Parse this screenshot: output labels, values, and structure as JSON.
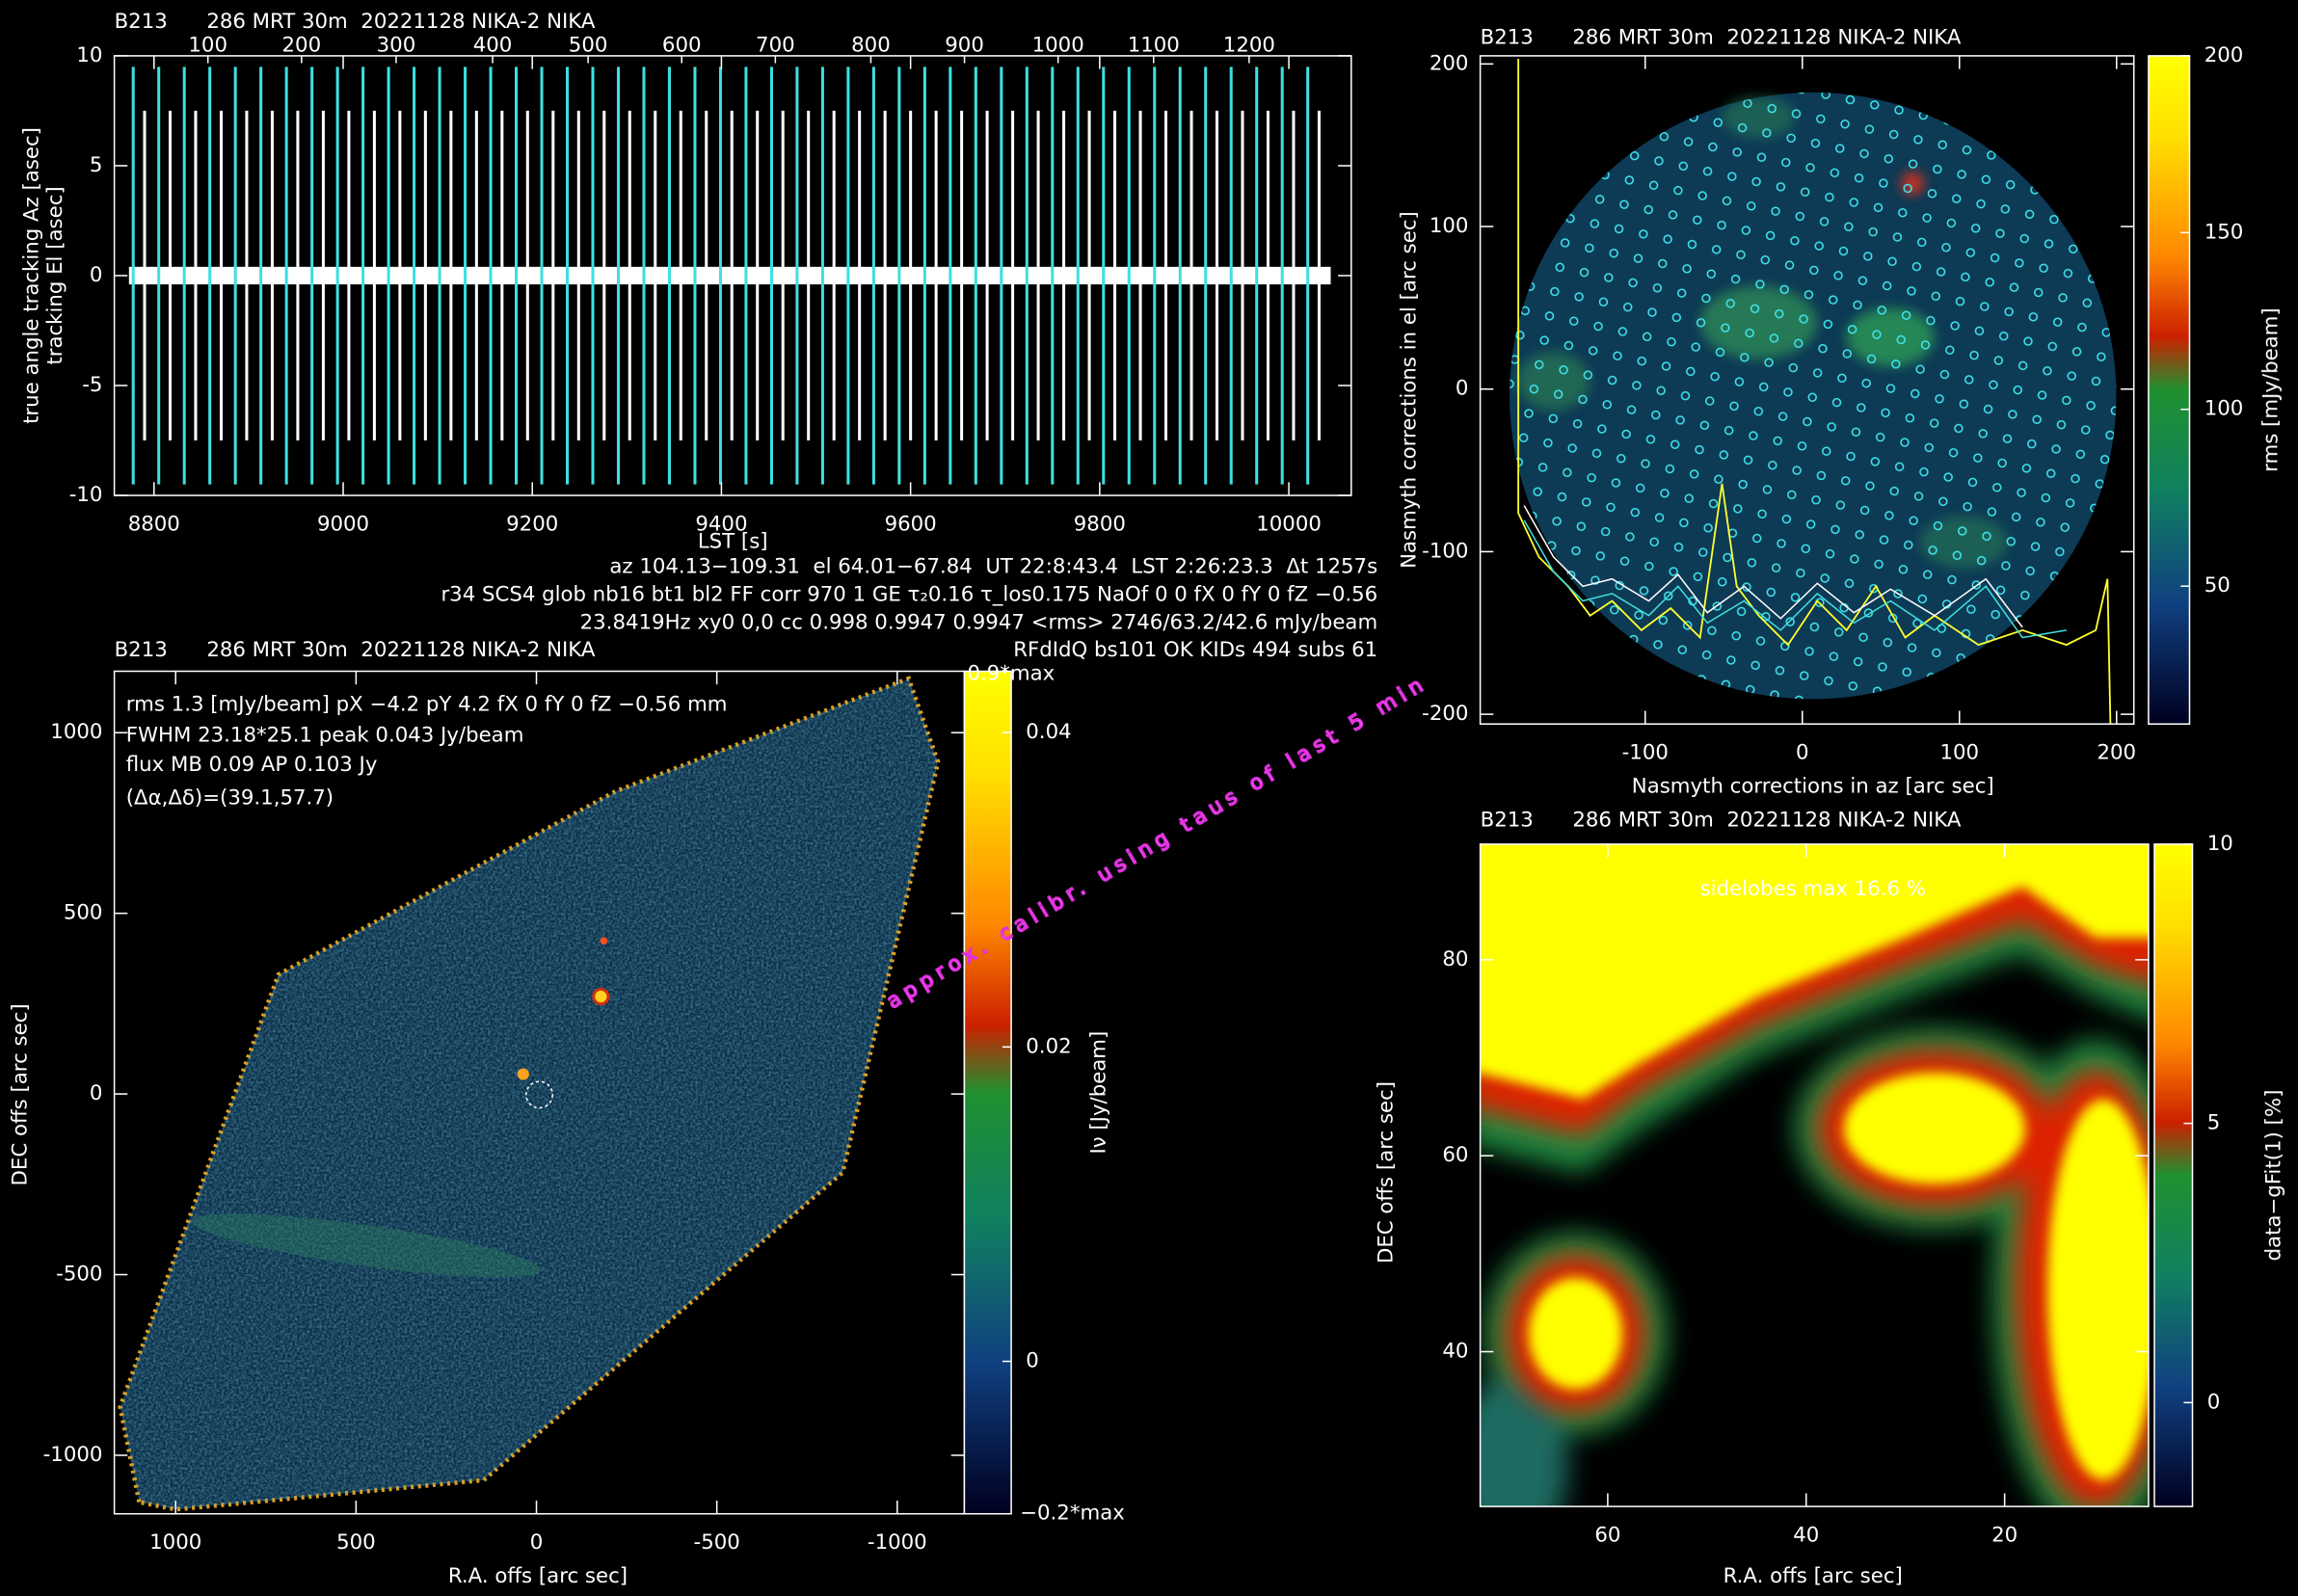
{
  "chart_data": [
    {
      "type": "spike",
      "title": "B213      286 MRT 30m  20221128 NIKA-2 NIKA",
      "xlabel": "LST [s]",
      "ylabel": "tracking El [asec]",
      "ylabel2": "true angle tracking Az [asec]",
      "xlim": [
        8758,
        10066
      ],
      "ylim": [
        -10,
        10
      ],
      "xticks": [
        8800,
        9000,
        9200,
        9400,
        9600,
        9800,
        10000
      ],
      "yticks": [
        -10,
        -5,
        0,
        5,
        10
      ],
      "x2ticks": [
        {
          "value": 8857,
          "label": "100"
        },
        {
          "value": 8956,
          "label": "200"
        },
        {
          "value": 9056,
          "label": "300"
        },
        {
          "value": 9158,
          "label": "400"
        },
        {
          "value": 9259,
          "label": "500"
        },
        {
          "value": 9358,
          "label": "600"
        },
        {
          "value": 9457,
          "label": "700"
        },
        {
          "value": 9558,
          "label": "800"
        },
        {
          "value": 9657,
          "label": "900"
        },
        {
          "value": 9756,
          "label": "1000"
        },
        {
          "value": 9857,
          "label": "1100"
        },
        {
          "value": 9958,
          "label": "1200"
        }
      ],
      "series": [
        {
          "color": "#3ee0e0",
          "x": [
            8778,
            8805,
            8832,
            8859,
            8886,
            8913,
            8940,
            8967,
            8994,
            9021,
            9048,
            9075,
            9102,
            9129,
            9156,
            9183,
            9210,
            9237,
            9264,
            9291,
            9318,
            9345,
            9372,
            9399,
            9426,
            9453,
            9480,
            9507,
            9534,
            9561,
            9588,
            9615,
            9642,
            9669,
            9696,
            9723,
            9750,
            9777,
            9804,
            9831,
            9858,
            9885,
            9912,
            9939,
            9966,
            9993,
            10020
          ],
          "values": [
            9.5,
            9.5,
            9.5,
            9.5,
            9.5,
            9.5,
            9.5,
            9.5,
            9.5,
            9.5,
            9.5,
            9.5,
            9.5,
            9.5,
            9.5,
            9.5,
            9.5,
            9.5,
            9.5,
            9.5,
            9.5,
            9.5,
            9.5,
            9.5,
            9.5,
            9.5,
            9.5,
            9.5,
            9.5,
            9.5,
            9.5,
            9.5,
            9.5,
            9.5,
            9.5,
            9.5,
            9.5,
            9.5,
            9.5,
            9.5,
            9.5,
            9.5,
            9.5,
            9.5,
            9.5,
            9.5,
            9.5
          ]
        },
        {
          "color": "#ffffff",
          "x": [
            8790,
            8817,
            8844,
            8871,
            8898,
            8925,
            8952,
            8979,
            9006,
            9033,
            9060,
            9087,
            9114,
            9141,
            9168,
            9195,
            9222,
            9249,
            9276,
            9303,
            9330,
            9357,
            9384,
            9411,
            9438,
            9465,
            9492,
            9519,
            9546,
            9573,
            9600,
            9627,
            9654,
            9681,
            9708,
            9735,
            9762,
            9789,
            9816,
            9843,
            9870,
            9897,
            9924,
            9951,
            9978,
            10005,
            10032
          ],
          "values": [
            7.5,
            7.5,
            7.5,
            7.5,
            7.5,
            7.5,
            7.5,
            7.5,
            7.5,
            7.5,
            7.5,
            7.5,
            7.5,
            7.5,
            7.5,
            7.5,
            7.5,
            7.5,
            7.5,
            7.5,
            7.5,
            7.5,
            7.5,
            7.5,
            7.5,
            7.5,
            7.5,
            7.5,
            7.5,
            7.5,
            7.5,
            7.5,
            7.5,
            7.5,
            7.5,
            7.5,
            7.5,
            7.5,
            7.5,
            7.5,
            7.5,
            7.5,
            7.5,
            7.5,
            7.5,
            7.5,
            7.5
          ]
        }
      ],
      "notes": [
        "az 104.13−109.31  el 64.01−67.84  UT 22:8:43.4  LST 2:26:23.3  Δt 1257s",
        "r34 SCS4 glob nb16 bt1 bl2 FF corr 970 1 GE τ₂0.16 τ_los0.175 NaOf 0 0 fX 0 fY 0 fZ −0.56",
        "23.8419Hz xy0 0,0 cc 0.998 0.9947 0.9947 <rms> 2746/63.2/42.6 mJy/beam",
        "RFdIdQ bs101 OK KIDs 494 subs 61"
      ]
    },
    {
      "type": "heatmap",
      "title": "B213      286 MRT 30m  20221128 NIKA-2 NIKA",
      "xlabel": "Nasmyth corrections in az [arc sec]",
      "ylabel": "Nasmyth corrections in el [arc sec]",
      "xlim": [
        -205,
        211
      ],
      "ylim": [
        -206,
        205
      ],
      "xticks": [
        -100,
        0,
        100,
        200
      ],
      "yticks": [
        -200,
        -100,
        0,
        100,
        200
      ],
      "colorbar": {
        "label": "rms [mJy/beam]",
        "clim": [
          11,
          200
        ],
        "ticks": [
          50,
          100,
          150,
          200
        ]
      }
    },
    {
      "type": "heatmap",
      "title": "B213      286 MRT 30m  20221128 NIKA-2 NIKA",
      "xlabel": "R.A. offs [arc sec]",
      "ylabel": "DEC offs [arc sec]",
      "xlim": [
        1170,
        -1186
      ],
      "ylim": [
        -1162,
        1170
      ],
      "xticks": [
        1000,
        500,
        0,
        -500,
        -1000
      ],
      "yticks": [
        -1000,
        -500,
        0,
        500,
        1000
      ],
      "colorbar": {
        "label": "Iν [Jy/beam]",
        "clim": [
          -0.0097,
          0.0439
        ],
        "ticks": [
          0,
          0.02,
          0.04
        ],
        "top_label": "0.9*max",
        "bottom_label": "−0.2*max"
      },
      "annotations": [
        "rms 1.3 [mJy/beam] pX −4.2 pY 4.2 fX 0 fY 0 fZ −0.56 mm",
        "FWHM 23.18*25.1 peak 0.043 Jy/beam",
        "flux MB 0.09 AP 0.103 Jy",
        "(Δα,Δδ)=(39.1,57.7)"
      ],
      "watermark": "approx. calibr. using taus of last 5 min"
    },
    {
      "type": "heatmap",
      "title": "B213      286 MRT 30m  20221128 NIKA-2 NIKA",
      "xlabel": "R.A. offs [arc sec]",
      "ylabel": "DEC offs [arc sec]",
      "xlim": [
        72.85,
        5.5
      ],
      "ylim": [
        24.2,
        91.8
      ],
      "xticks": [
        60,
        40,
        20
      ],
      "yticks": [
        40,
        60,
        80
      ],
      "colorbar": {
        "label": "data−gFit(1) [%]",
        "clim": [
          -1.86,
          10
        ],
        "ticks": [
          0,
          5,
          10
        ]
      },
      "annotation": "sidelobes max 16.6 %"
    }
  ]
}
